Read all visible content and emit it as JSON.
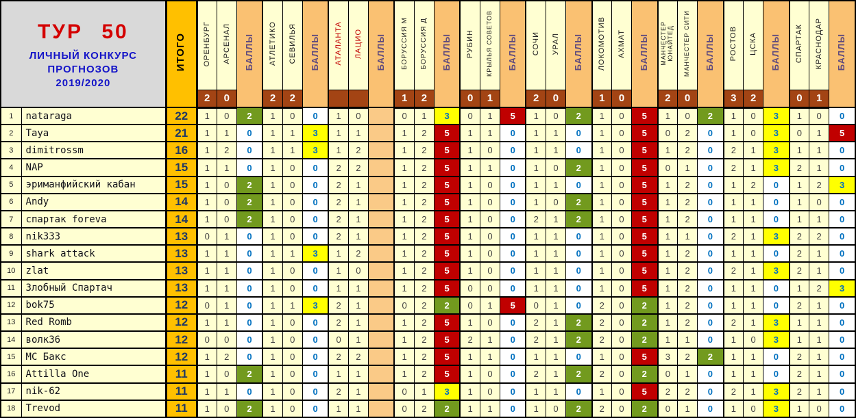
{
  "title": {
    "round": "ТУР 50",
    "subtitle1": "ЛИЧНЫЙ КОНКУРС",
    "subtitle2": "ПРОГНОЗОВ",
    "subtitle3": "2019/2020"
  },
  "labels": {
    "total": "ИТОГО",
    "points": "БАЛЛЫ"
  },
  "colors": {
    "total_column": "#FFC000",
    "points_column": "#FAC172",
    "result_row": "#A34414",
    "points_0": {
      "bg": "#FFFFFF",
      "text": "#0070C0"
    },
    "points_2": {
      "bg": "#729A1E",
      "text": "#FFFFFF"
    },
    "points_3": {
      "bg": "#FFFF00",
      "text": "#0070C0"
    },
    "points_5": {
      "bg": "#C00000",
      "text": "#FFFFFF"
    },
    "red_team_name": "#C00000",
    "cell_cream": "#FFFFD2",
    "info_bg": "#D9D9D9"
  },
  "matches": [
    {
      "home": "ОРЕНБУРГ",
      "away": "АРСЕНАЛ",
      "result_home": "2",
      "result_away": "0",
      "name_color": "black"
    },
    {
      "home": "АТЛЕТИКО",
      "away": "СЕВИЛЬЯ",
      "result_home": "2",
      "result_away": "2",
      "name_color": "black"
    },
    {
      "home": "АТАЛАНТА",
      "away": "ЛАЦИО",
      "result_home": "",
      "result_away": "",
      "name_color": "red"
    },
    {
      "home": "БОРУССИЯ М",
      "away": "БОРУССИЯ Д",
      "result_home": "1",
      "result_away": "2",
      "name_color": "black"
    },
    {
      "home": "РУБИН",
      "away": "КРЫЛЬЯ СОВЕТОВ",
      "result_home": "0",
      "result_away": "1",
      "name_color": "black"
    },
    {
      "home": "СОЧИ",
      "away": "УРАЛ",
      "result_home": "2",
      "result_away": "0",
      "name_color": "black"
    },
    {
      "home": "ЛОКОМОТИВ",
      "away": "АХМАТ",
      "result_home": "1",
      "result_away": "0",
      "name_color": "black"
    },
    {
      "home": "МАНЧЕСТЕР\nЮНАЙТЕД",
      "away": "МАНЧЕСТЕР СИТИ",
      "result_home": "2",
      "result_away": "0",
      "name_color": "black"
    },
    {
      "home": "РОСТОВ",
      "away": "ЦСКА",
      "result_home": "3",
      "result_away": "2",
      "name_color": "black"
    },
    {
      "home": "СПАРТАК",
      "away": "КРАСНОДАР",
      "result_home": "0",
      "result_away": "1",
      "name_color": "black"
    }
  ],
  "players": [
    {
      "rank": "1",
      "name": "nataraga",
      "total": "22",
      "preds": [
        [
          "1",
          "0"
        ],
        [
          "1",
          "0"
        ],
        [
          "1",
          "0"
        ],
        [
          "0",
          "1"
        ],
        [
          "0",
          "1"
        ],
        [
          "1",
          "0"
        ],
        [
          "1",
          "0"
        ],
        [
          "1",
          "0"
        ],
        [
          "1",
          "0"
        ],
        [
          "1",
          "0"
        ]
      ],
      "points": [
        2,
        0,
        null,
        3,
        5,
        2,
        5,
        2,
        3,
        0
      ]
    },
    {
      "rank": "2",
      "name": "Taya",
      "total": "21",
      "preds": [
        [
          "1",
          "1"
        ],
        [
          "1",
          "1"
        ],
        [
          "1",
          "1"
        ],
        [
          "1",
          "2"
        ],
        [
          "1",
          "1"
        ],
        [
          "1",
          "1"
        ],
        [
          "1",
          "0"
        ],
        [
          "0",
          "2"
        ],
        [
          "1",
          "0"
        ],
        [
          "0",
          "1"
        ]
      ],
      "points": [
        0,
        3,
        null,
        5,
        0,
        0,
        5,
        0,
        3,
        5
      ]
    },
    {
      "rank": "3",
      "name": "dimitrossm",
      "total": "16",
      "preds": [
        [
          "1",
          "2"
        ],
        [
          "1",
          "1"
        ],
        [
          "1",
          "2"
        ],
        [
          "1",
          "2"
        ],
        [
          "1",
          "0"
        ],
        [
          "1",
          "1"
        ],
        [
          "1",
          "0"
        ],
        [
          "1",
          "2"
        ],
        [
          "2",
          "1"
        ],
        [
          "1",
          "1"
        ]
      ],
      "points": [
        0,
        3,
        null,
        5,
        0,
        0,
        5,
        0,
        3,
        0
      ]
    },
    {
      "rank": "4",
      "name": "NAP",
      "total": "15",
      "preds": [
        [
          "1",
          "1"
        ],
        [
          "1",
          "0"
        ],
        [
          "2",
          "2"
        ],
        [
          "1",
          "2"
        ],
        [
          "1",
          "1"
        ],
        [
          "1",
          "0"
        ],
        [
          "1",
          "0"
        ],
        [
          "0",
          "1"
        ],
        [
          "2",
          "1"
        ],
        [
          "2",
          "1"
        ]
      ],
      "points": [
        0,
        0,
        null,
        5,
        0,
        2,
        5,
        0,
        3,
        0
      ]
    },
    {
      "rank": "5",
      "name": "эриманфийский кабан",
      "total": "15",
      "preds": [
        [
          "1",
          "0"
        ],
        [
          "1",
          "0"
        ],
        [
          "2",
          "1"
        ],
        [
          "1",
          "2"
        ],
        [
          "1",
          "0"
        ],
        [
          "1",
          "1"
        ],
        [
          "1",
          "0"
        ],
        [
          "1",
          "2"
        ],
        [
          "1",
          "2"
        ],
        [
          "1",
          "2"
        ]
      ],
      "points": [
        2,
        0,
        null,
        5,
        0,
        0,
        5,
        0,
        0,
        3
      ]
    },
    {
      "rank": "6",
      "name": "Andy",
      "total": "14",
      "preds": [
        [
          "1",
          "0"
        ],
        [
          "1",
          "0"
        ],
        [
          "2",
          "1"
        ],
        [
          "1",
          "2"
        ],
        [
          "1",
          "0"
        ],
        [
          "1",
          "0"
        ],
        [
          "1",
          "0"
        ],
        [
          "1",
          "2"
        ],
        [
          "1",
          "1"
        ],
        [
          "1",
          "0"
        ]
      ],
      "points": [
        2,
        0,
        null,
        5,
        0,
        2,
        5,
        0,
        0,
        0
      ]
    },
    {
      "rank": "7",
      "name": "спартак foreva",
      "total": "14",
      "preds": [
        [
          "1",
          "0"
        ],
        [
          "1",
          "0"
        ],
        [
          "2",
          "1"
        ],
        [
          "1",
          "2"
        ],
        [
          "1",
          "0"
        ],
        [
          "2",
          "1"
        ],
        [
          "1",
          "0"
        ],
        [
          "1",
          "2"
        ],
        [
          "1",
          "1"
        ],
        [
          "1",
          "1"
        ]
      ],
      "points": [
        2,
        0,
        null,
        5,
        0,
        2,
        5,
        0,
        0,
        0
      ]
    },
    {
      "rank": "8",
      "name": "nik333",
      "total": "13",
      "preds": [
        [
          "0",
          "1"
        ],
        [
          "1",
          "0"
        ],
        [
          "2",
          "1"
        ],
        [
          "1",
          "2"
        ],
        [
          "1",
          "0"
        ],
        [
          "1",
          "1"
        ],
        [
          "1",
          "0"
        ],
        [
          "1",
          "1"
        ],
        [
          "2",
          "1"
        ],
        [
          "2",
          "2"
        ]
      ],
      "points": [
        0,
        0,
        null,
        5,
        0,
        0,
        5,
        0,
        3,
        0
      ]
    },
    {
      "rank": "9",
      "name": "shark attack",
      "total": "13",
      "preds": [
        [
          "1",
          "1"
        ],
        [
          "1",
          "1"
        ],
        [
          "1",
          "2"
        ],
        [
          "1",
          "2"
        ],
        [
          "1",
          "0"
        ],
        [
          "1",
          "1"
        ],
        [
          "1",
          "0"
        ],
        [
          "1",
          "2"
        ],
        [
          "1",
          "1"
        ],
        [
          "2",
          "1"
        ]
      ],
      "points": [
        0,
        3,
        null,
        5,
        0,
        0,
        5,
        0,
        0,
        0
      ]
    },
    {
      "rank": "10",
      "name": "zlat",
      "total": "13",
      "preds": [
        [
          "1",
          "1"
        ],
        [
          "1",
          "0"
        ],
        [
          "1",
          "0"
        ],
        [
          "1",
          "2"
        ],
        [
          "1",
          "0"
        ],
        [
          "1",
          "1"
        ],
        [
          "1",
          "0"
        ],
        [
          "1",
          "2"
        ],
        [
          "2",
          "1"
        ],
        [
          "2",
          "1"
        ]
      ],
      "points": [
        0,
        0,
        null,
        5,
        0,
        0,
        5,
        0,
        3,
        0
      ]
    },
    {
      "rank": "11",
      "name": "Злобный Спартач",
      "total": "13",
      "preds": [
        [
          "1",
          "1"
        ],
        [
          "1",
          "0"
        ],
        [
          "1",
          "1"
        ],
        [
          "1",
          "2"
        ],
        [
          "0",
          "0"
        ],
        [
          "1",
          "1"
        ],
        [
          "1",
          "0"
        ],
        [
          "1",
          "2"
        ],
        [
          "1",
          "1"
        ],
        [
          "1",
          "2"
        ]
      ],
      "points": [
        0,
        0,
        null,
        5,
        0,
        0,
        5,
        0,
        0,
        3
      ]
    },
    {
      "rank": "12",
      "name": "bok75",
      "total": "12",
      "preds": [
        [
          "0",
          "1"
        ],
        [
          "1",
          "1"
        ],
        [
          "2",
          "1"
        ],
        [
          "0",
          "2"
        ],
        [
          "0",
          "1"
        ],
        [
          "0",
          "1"
        ],
        [
          "2",
          "0"
        ],
        [
          "1",
          "2"
        ],
        [
          "1",
          "1"
        ],
        [
          "2",
          "1"
        ]
      ],
      "points": [
        0,
        3,
        null,
        2,
        5,
        0,
        2,
        0,
        0,
        0
      ]
    },
    {
      "rank": "13",
      "name": "Red Romb",
      "total": "12",
      "preds": [
        [
          "1",
          "1"
        ],
        [
          "1",
          "0"
        ],
        [
          "2",
          "1"
        ],
        [
          "1",
          "2"
        ],
        [
          "1",
          "0"
        ],
        [
          "2",
          "1"
        ],
        [
          "2",
          "0"
        ],
        [
          "1",
          "2"
        ],
        [
          "2",
          "1"
        ],
        [
          "1",
          "1"
        ]
      ],
      "points": [
        0,
        0,
        null,
        5,
        0,
        2,
        2,
        0,
        3,
        0
      ]
    },
    {
      "rank": "14",
      "name": "волк36",
      "total": "12",
      "preds": [
        [
          "0",
          "0"
        ],
        [
          "1",
          "0"
        ],
        [
          "0",
          "1"
        ],
        [
          "1",
          "2"
        ],
        [
          "2",
          "1"
        ],
        [
          "2",
          "1"
        ],
        [
          "2",
          "0"
        ],
        [
          "1",
          "1"
        ],
        [
          "1",
          "0"
        ],
        [
          "1",
          "1"
        ]
      ],
      "points": [
        0,
        0,
        null,
        5,
        0,
        2,
        2,
        0,
        3,
        0
      ]
    },
    {
      "rank": "15",
      "name": "МС Бакс",
      "total": "12",
      "preds": [
        [
          "1",
          "2"
        ],
        [
          "1",
          "0"
        ],
        [
          "2",
          "2"
        ],
        [
          "1",
          "2"
        ],
        [
          "1",
          "1"
        ],
        [
          "1",
          "1"
        ],
        [
          "1",
          "0"
        ],
        [
          "3",
          "2"
        ],
        [
          "1",
          "1"
        ],
        [
          "2",
          "1"
        ]
      ],
      "points": [
        0,
        0,
        null,
        5,
        0,
        0,
        5,
        2,
        0,
        0
      ]
    },
    {
      "rank": "16",
      "name": "Attilla One",
      "total": "11",
      "preds": [
        [
          "1",
          "0"
        ],
        [
          "1",
          "0"
        ],
        [
          "1",
          "1"
        ],
        [
          "1",
          "2"
        ],
        [
          "1",
          "0"
        ],
        [
          "2",
          "1"
        ],
        [
          "2",
          "0"
        ],
        [
          "0",
          "1"
        ],
        [
          "1",
          "1"
        ],
        [
          "2",
          "1"
        ]
      ],
      "points": [
        2,
        0,
        null,
        5,
        0,
        2,
        2,
        0,
        0,
        0
      ]
    },
    {
      "rank": "17",
      "name": "nik-62",
      "total": "11",
      "preds": [
        [
          "1",
          "1"
        ],
        [
          "1",
          "0"
        ],
        [
          "2",
          "1"
        ],
        [
          "0",
          "1"
        ],
        [
          "1",
          "0"
        ],
        [
          "1",
          "1"
        ],
        [
          "1",
          "0"
        ],
        [
          "2",
          "2"
        ],
        [
          "2",
          "1"
        ],
        [
          "2",
          "1"
        ]
      ],
      "points": [
        0,
        0,
        null,
        3,
        0,
        0,
        5,
        0,
        3,
        0
      ]
    },
    {
      "rank": "18",
      "name": "Trevod",
      "total": "11",
      "preds": [
        [
          "1",
          "0"
        ],
        [
          "1",
          "0"
        ],
        [
          "1",
          "1"
        ],
        [
          "0",
          "2"
        ],
        [
          "1",
          "1"
        ],
        [
          "1",
          "0"
        ],
        [
          "2",
          "0"
        ],
        [
          "0",
          "1"
        ],
        [
          "1",
          "0"
        ],
        [
          "1",
          "0"
        ]
      ],
      "points": [
        2,
        0,
        null,
        2,
        0,
        2,
        2,
        0,
        3,
        0
      ]
    }
  ]
}
